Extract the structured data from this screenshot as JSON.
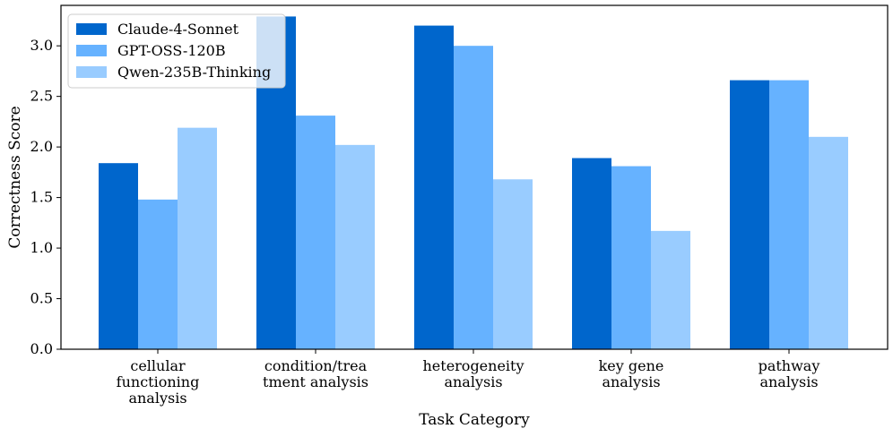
{
  "chart_data": {
    "type": "bar",
    "title": "",
    "xlabel": "Task Category",
    "ylabel": "Correctness Score",
    "ylim": [
      0,
      3.4
    ],
    "yticks": [
      "0.0",
      "0.5",
      "1.0",
      "1.5",
      "2.0",
      "2.5",
      "3.0"
    ],
    "categories": [
      [
        "cellular",
        "functioning",
        "analysis"
      ],
      [
        "condition/trea",
        "tment analysis"
      ],
      [
        "heterogeneity",
        "analysis"
      ],
      [
        "key gene",
        "analysis"
      ],
      [
        "pathway",
        "analysis"
      ]
    ],
    "series": [
      {
        "name": "Claude-4-Sonnet",
        "color": "#0066cc",
        "values": [
          1.84,
          3.29,
          3.2,
          1.89,
          2.66
        ]
      },
      {
        "name": "GPT-OSS-120B",
        "color": "#66b2ff",
        "values": [
          1.48,
          2.31,
          3.0,
          1.81,
          2.66
        ]
      },
      {
        "name": "Qwen-235B-Thinking",
        "color": "#99ccff",
        "values": [
          2.19,
          2.02,
          1.68,
          1.17,
          2.1
        ]
      }
    ],
    "legend_position": "top-left"
  }
}
